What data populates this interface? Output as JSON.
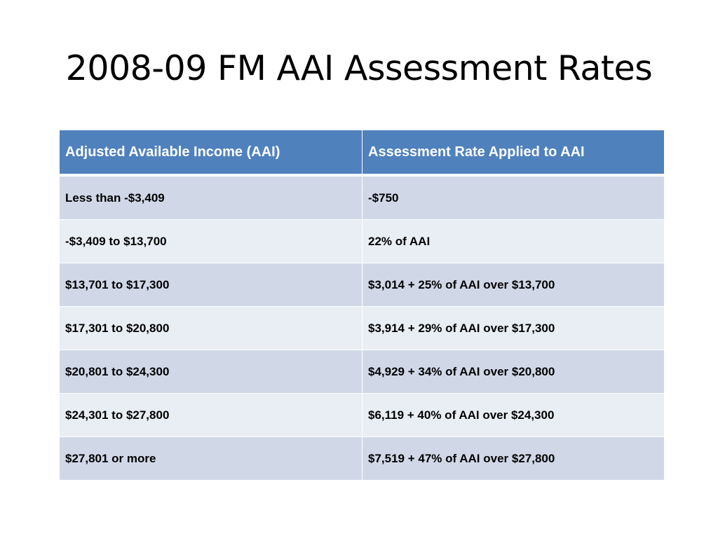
{
  "slide": {
    "title": "2008-09 FM AAI Assessment Rates"
  },
  "table": {
    "headers": [
      "Adjusted Available Income (AAI)",
      "Assessment Rate Applied to AAI"
    ],
    "rows": [
      [
        "Less than -$3,409",
        "-$750"
      ],
      [
        "-$3,409 to $13,700",
        "22% of AAI"
      ],
      [
        "$13,701 to $17,300",
        "$3,014 + 25% of AAI over $13,700"
      ],
      [
        "$17,301 to $20,800",
        "$3,914 + 29% of AAI over $17,300"
      ],
      [
        "$20,801 to $24,300",
        "$4,929 + 34% of AAI over $20,800"
      ],
      [
        "$24,301 to $27,800",
        "$6,119 + 40% of AAI over $24,300"
      ],
      [
        "$27,801 or more",
        "$7,519 + 47% of AAI over $27,800"
      ]
    ]
  },
  "colors": {
    "header_bg": "#4f81bd",
    "row_odd_bg": "#d0d8e8",
    "row_even_bg": "#e9edf4"
  }
}
